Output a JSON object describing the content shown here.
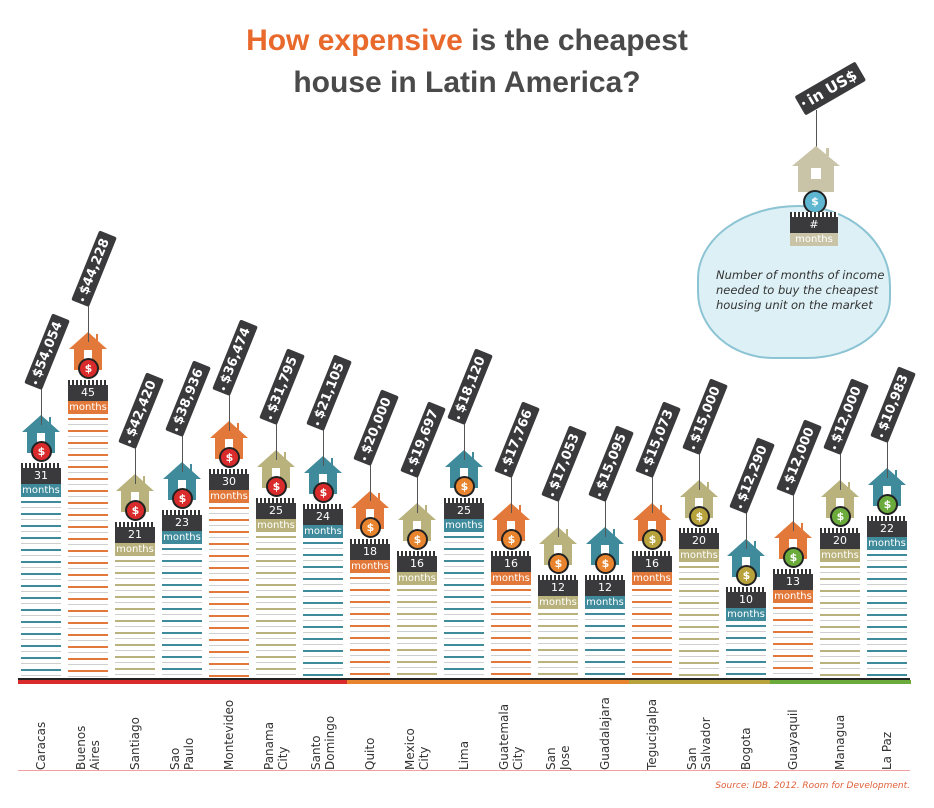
{
  "title": {
    "highlight": "How expensive",
    "rest": " is the cheapest",
    "line2": "house in Latin America?"
  },
  "legend": {
    "unit_tag": "in US$",
    "number_symbol": "#",
    "months_label": "months",
    "coin_symbol": "$",
    "description": "Number of months of income needed to buy the cheapest housing unit on the market"
  },
  "source": "Source: IDB. 2012. Room for Development.",
  "colors": {
    "teal": "#3f8a9b",
    "orange": "#e2793a",
    "olive": "#b9b27c",
    "coin_red": "#d92b2b",
    "coin_orange": "#e8842e",
    "coin_gold": "#b8a23c",
    "coin_green": "#6aab3c"
  },
  "chart_data": {
    "type": "bar",
    "title": "How expensive is the cheapest house in Latin America?",
    "value_unit": "months",
    "price_unit": "US$",
    "categories": [
      "Caracas",
      "Buenos Aires",
      "Santiago",
      "Sao Paulo",
      "Montevideo",
      "Panama City",
      "Santo Domingo",
      "Quito",
      "Mexico City",
      "Lima",
      "Guatemala City",
      "San Jose",
      "Guadalajara",
      "Tegucigalpa",
      "San Salvador",
      "Bogota",
      "Guayaquil",
      "Managua",
      "La Paz"
    ],
    "labels": [
      [
        "Caracas"
      ],
      [
        "Buenos",
        "Aires"
      ],
      [
        "Santiago"
      ],
      [
        "Sao",
        "Paulo"
      ],
      [
        "Montevideo"
      ],
      [
        "Panama",
        "City"
      ],
      [
        "Santo",
        "Domingo"
      ],
      [
        "Quito"
      ],
      [
        "Mexico",
        "City"
      ],
      [
        "Lima"
      ],
      [
        "Guatemala",
        "City"
      ],
      [
        "San",
        "Jose"
      ],
      [
        "Guadalajara"
      ],
      [
        "Tegucigalpa"
      ],
      [
        "San",
        "Salvador"
      ],
      [
        "Bogota"
      ],
      [
        "Guayaquil"
      ],
      [
        "Managua"
      ],
      [
        "La Paz"
      ]
    ],
    "months": [
      31,
      45,
      21,
      23,
      30,
      25,
      24,
      18,
      16,
      25,
      16,
      12,
      12,
      16,
      20,
      10,
      13,
      20,
      22
    ],
    "prices": [
      "$54,054",
      "$44,228",
      "$42,420",
      "$38,936",
      "$36,474",
      "$31,795",
      "$21,105",
      "$20,000",
      "$19,697",
      "$18,120",
      "$17,766",
      "$17,053",
      "$15,095",
      "$15,073",
      "$15,000",
      "$12,290",
      "$12,000",
      "$12,000",
      "$10,983"
    ],
    "house_colors": [
      "teal",
      "orange",
      "olive",
      "teal",
      "orange",
      "olive",
      "teal",
      "orange",
      "olive",
      "teal",
      "orange",
      "olive",
      "teal",
      "orange",
      "olive",
      "teal",
      "orange",
      "olive",
      "teal"
    ],
    "coin_colors": [
      "coin_red",
      "coin_red",
      "coin_red",
      "coin_red",
      "coin_red",
      "coin_red",
      "coin_red",
      "coin_orange",
      "coin_orange",
      "coin_orange",
      "coin_orange",
      "coin_orange",
      "coin_orange",
      "coin_gold",
      "coin_gold",
      "coin_gold",
      "coin_green",
      "coin_green",
      "coin_green"
    ],
    "months_label": "months",
    "coin_symbol": "$"
  }
}
